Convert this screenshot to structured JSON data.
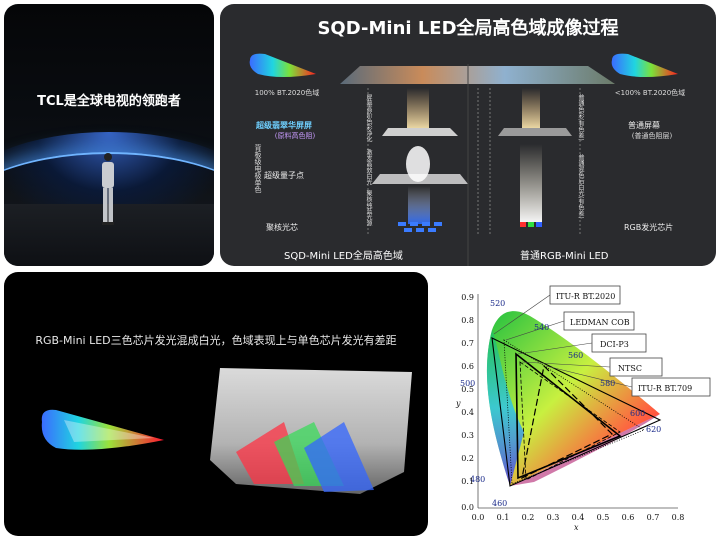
{
  "panel_stage": {
    "headline": "TCL是全球电视的领跑者"
  },
  "panel_sqd": {
    "title": "SQD-Mini LED全局高色域成像过程",
    "left_gamut": "100% BT.2020色域",
    "right_gamut": "<100% BT.2020色域",
    "screen_left": "超级翡翠华屏屏",
    "screen_left_sub": "(原料高色阻)",
    "quantum": "超级量子点",
    "quantum_side": "背板级电极单色",
    "chip_left": "聚核光芯",
    "screen_right": "普通屏幕",
    "screen_right_sub": "(普通色阻层)",
    "chip_right": "RGB发光芯片",
    "vlabel_1": "屏幕高阶色彩净化",
    "vlabel_2": "激发高效白光",
    "vlabel_3": "聚核纯蓝光源",
    "vlabel_4": "普通色彩(有色差)",
    "vlabel_5": "普通混色后白光(有色差)",
    "bottom_left": "SQD-Mini LED全局高色域",
    "bottom_right": "普通RGB-Mini LED"
  },
  "panel_rgb": {
    "caption": "RGB-Mini LED三色芯片发光混成白光，色域表现上与单色芯片发光有差距"
  },
  "panel_cie": {
    "legend": [
      "ITU-R BT.2020",
      "LEDMAN COB",
      "DCI-P3",
      "NTSC",
      "ITU-R BT.709"
    ],
    "wavelengths": [
      "520",
      "540",
      "560",
      "580",
      "600",
      "620",
      "500",
      "480",
      "460"
    ],
    "y_ticks": [
      "0.9",
      "0.8",
      "0.7",
      "0.6",
      "0.5",
      "0.4",
      "0.3",
      "0.2",
      "0.1",
      "0.0"
    ],
    "x_ticks": [
      "0.0",
      "0.1",
      "0.2",
      "0.3",
      "0.4",
      "0.5",
      "0.6",
      "0.7",
      "0.8"
    ],
    "x_axis": "x",
    "y_axis": "y"
  }
}
